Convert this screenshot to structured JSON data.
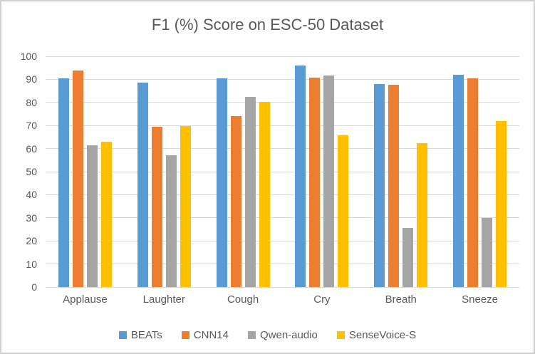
{
  "chart_data": {
    "type": "bar",
    "title": "F1 (%) Score on ESC-50 Dataset",
    "categories": [
      "Applause",
      "Laughter",
      "Cough",
      "Cry",
      "Breath",
      "Sneeze"
    ],
    "series": [
      {
        "name": "BEATs",
        "color": "#5B9BD5",
        "values": [
          90.3,
          88.7,
          90.3,
          96.0,
          88.1,
          92.0
        ]
      },
      {
        "name": "CNN14",
        "color": "#ED7D31",
        "values": [
          93.8,
          69.5,
          74.1,
          90.8,
          87.8,
          90.5
        ]
      },
      {
        "name": "Qwen-audio",
        "color": "#A5A5A5",
        "values": [
          61.4,
          57.2,
          82.4,
          91.7,
          25.7,
          29.8
        ]
      },
      {
        "name": "SenseVoice-S",
        "color": "#FFC000",
        "values": [
          62.9,
          69.8,
          80.4,
          65.7,
          62.5,
          71.9
        ]
      }
    ],
    "ylim": [
      0,
      100
    ],
    "ytick_step": 10,
    "yticks": [
      "0",
      "10",
      "20",
      "30",
      "40",
      "50",
      "60",
      "70",
      "80",
      "90",
      "100"
    ],
    "grid": true,
    "legend_position": "bottom",
    "xlabel": "",
    "ylabel": ""
  },
  "style": {
    "text_color": "#595959",
    "gridline_color": "#d9d9d9",
    "border_color": "#cfcfcf",
    "background": "#ffffff"
  }
}
